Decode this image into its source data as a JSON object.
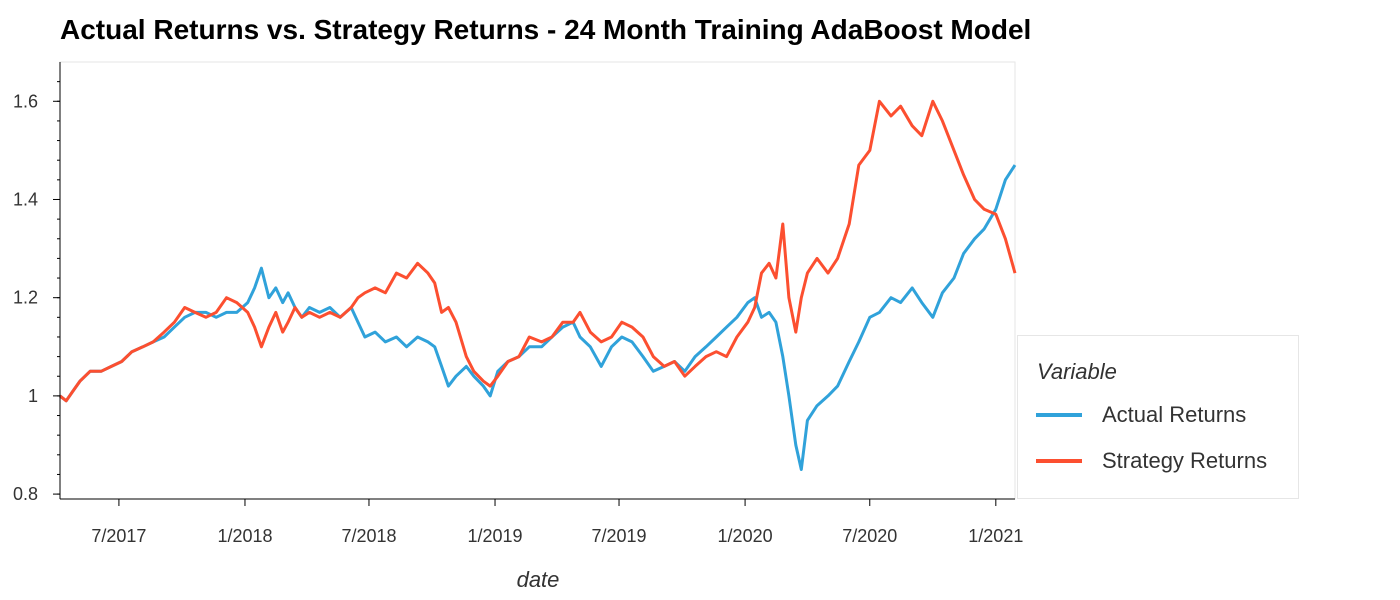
{
  "chart_data": {
    "type": "line",
    "title": "Actual Returns vs. Strategy Returns - 24 Month Training AdaBoost Model",
    "xlabel": "date",
    "ylabel": "",
    "x_range": [
      "2017-04-06",
      "2021-01-29"
    ],
    "ylim": [
      0.79,
      1.68
    ],
    "grid": false,
    "legend_position": "right",
    "legend_title": "Variable",
    "x_ticks": [
      {
        "date": "2017-07-01",
        "label": "7/2017"
      },
      {
        "date": "2018-01-01",
        "label": "1/2018"
      },
      {
        "date": "2018-07-01",
        "label": "7/2018"
      },
      {
        "date": "2019-01-01",
        "label": "1/2019"
      },
      {
        "date": "2019-07-01",
        "label": "7/2019"
      },
      {
        "date": "2020-01-01",
        "label": "1/2020"
      },
      {
        "date": "2020-07-01",
        "label": "7/2020"
      },
      {
        "date": "2021-01-01",
        "label": "1/2021"
      }
    ],
    "y_ticks": [
      {
        "value": 0.8,
        "label": "0.8"
      },
      {
        "value": 1.0,
        "label": "1"
      },
      {
        "value": 1.2,
        "label": "1.2"
      },
      {
        "value": 1.4,
        "label": "1.4"
      },
      {
        "value": 1.6,
        "label": "1.6"
      }
    ],
    "series": [
      {
        "name": "Actual Returns",
        "color": "#30a2da",
        "points": [
          [
            "2017-04-06",
            1.0
          ],
          [
            "2017-04-15",
            0.99
          ],
          [
            "2017-04-25",
            1.01
          ],
          [
            "2017-05-05",
            1.03
          ],
          [
            "2017-05-20",
            1.05
          ],
          [
            "2017-06-05",
            1.05
          ],
          [
            "2017-06-20",
            1.06
          ],
          [
            "2017-07-05",
            1.07
          ],
          [
            "2017-07-20",
            1.09
          ],
          [
            "2017-08-05",
            1.1
          ],
          [
            "2017-08-20",
            1.11
          ],
          [
            "2017-09-05",
            1.12
          ],
          [
            "2017-09-20",
            1.14
          ],
          [
            "2017-10-05",
            1.16
          ],
          [
            "2017-10-20",
            1.17
          ],
          [
            "2017-11-05",
            1.17
          ],
          [
            "2017-11-20",
            1.16
          ],
          [
            "2017-12-05",
            1.17
          ],
          [
            "2017-12-20",
            1.17
          ],
          [
            "2018-01-05",
            1.19
          ],
          [
            "2018-01-15",
            1.22
          ],
          [
            "2018-01-25",
            1.26
          ],
          [
            "2018-02-05",
            1.2
          ],
          [
            "2018-02-15",
            1.22
          ],
          [
            "2018-02-25",
            1.19
          ],
          [
            "2018-03-05",
            1.21
          ],
          [
            "2018-03-15",
            1.18
          ],
          [
            "2018-03-25",
            1.16
          ],
          [
            "2018-04-05",
            1.18
          ],
          [
            "2018-04-20",
            1.17
          ],
          [
            "2018-05-05",
            1.18
          ],
          [
            "2018-05-20",
            1.16
          ],
          [
            "2018-06-05",
            1.18
          ],
          [
            "2018-06-15",
            1.15
          ],
          [
            "2018-06-25",
            1.12
          ],
          [
            "2018-07-10",
            1.13
          ],
          [
            "2018-07-25",
            1.11
          ],
          [
            "2018-08-10",
            1.12
          ],
          [
            "2018-08-25",
            1.1
          ],
          [
            "2018-09-10",
            1.12
          ],
          [
            "2018-09-25",
            1.11
          ],
          [
            "2018-10-05",
            1.1
          ],
          [
            "2018-10-15",
            1.06
          ],
          [
            "2018-10-25",
            1.02
          ],
          [
            "2018-11-05",
            1.04
          ],
          [
            "2018-11-20",
            1.06
          ],
          [
            "2018-12-01",
            1.04
          ],
          [
            "2018-12-15",
            1.02
          ],
          [
            "2018-12-25",
            1.0
          ],
          [
            "2019-01-05",
            1.05
          ],
          [
            "2019-01-20",
            1.07
          ],
          [
            "2019-02-05",
            1.08
          ],
          [
            "2019-02-20",
            1.1
          ],
          [
            "2019-03-10",
            1.1
          ],
          [
            "2019-03-25",
            1.12
          ],
          [
            "2019-04-10",
            1.14
          ],
          [
            "2019-04-25",
            1.15
          ],
          [
            "2019-05-05",
            1.12
          ],
          [
            "2019-05-20",
            1.1
          ],
          [
            "2019-06-05",
            1.06
          ],
          [
            "2019-06-20",
            1.1
          ],
          [
            "2019-07-05",
            1.12
          ],
          [
            "2019-07-20",
            1.11
          ],
          [
            "2019-08-05",
            1.08
          ],
          [
            "2019-08-20",
            1.05
          ],
          [
            "2019-09-05",
            1.06
          ],
          [
            "2019-09-20",
            1.07
          ],
          [
            "2019-10-05",
            1.05
          ],
          [
            "2019-10-20",
            1.08
          ],
          [
            "2019-11-05",
            1.1
          ],
          [
            "2019-11-20",
            1.12
          ],
          [
            "2019-12-05",
            1.14
          ],
          [
            "2019-12-20",
            1.16
          ],
          [
            "2020-01-05",
            1.19
          ],
          [
            "2020-01-15",
            1.2
          ],
          [
            "2020-01-25",
            1.16
          ],
          [
            "2020-02-05",
            1.17
          ],
          [
            "2020-02-15",
            1.15
          ],
          [
            "2020-02-25",
            1.08
          ],
          [
            "2020-03-05",
            1.0
          ],
          [
            "2020-03-15",
            0.9
          ],
          [
            "2020-03-23",
            0.85
          ],
          [
            "2020-04-01",
            0.95
          ],
          [
            "2020-04-15",
            0.98
          ],
          [
            "2020-05-01",
            1.0
          ],
          [
            "2020-05-15",
            1.02
          ],
          [
            "2020-06-01",
            1.07
          ],
          [
            "2020-06-15",
            1.11
          ],
          [
            "2020-07-01",
            1.16
          ],
          [
            "2020-07-15",
            1.17
          ],
          [
            "2020-08-01",
            1.2
          ],
          [
            "2020-08-15",
            1.19
          ],
          [
            "2020-09-01",
            1.22
          ],
          [
            "2020-09-15",
            1.19
          ],
          [
            "2020-10-01",
            1.16
          ],
          [
            "2020-10-15",
            1.21
          ],
          [
            "2020-11-01",
            1.24
          ],
          [
            "2020-11-15",
            1.29
          ],
          [
            "2020-12-01",
            1.32
          ],
          [
            "2020-12-15",
            1.34
          ],
          [
            "2021-01-01",
            1.38
          ],
          [
            "2021-01-15",
            1.44
          ],
          [
            "2021-01-29",
            1.47
          ]
        ]
      },
      {
        "name": "Strategy Returns",
        "color": "#fc4f30",
        "points": [
          [
            "2017-04-06",
            1.0
          ],
          [
            "2017-04-15",
            0.99
          ],
          [
            "2017-04-25",
            1.01
          ],
          [
            "2017-05-05",
            1.03
          ],
          [
            "2017-05-20",
            1.05
          ],
          [
            "2017-06-05",
            1.05
          ],
          [
            "2017-06-20",
            1.06
          ],
          [
            "2017-07-05",
            1.07
          ],
          [
            "2017-07-20",
            1.09
          ],
          [
            "2017-08-05",
            1.1
          ],
          [
            "2017-08-20",
            1.11
          ],
          [
            "2017-09-05",
            1.13
          ],
          [
            "2017-09-20",
            1.15
          ],
          [
            "2017-10-05",
            1.18
          ],
          [
            "2017-10-20",
            1.17
          ],
          [
            "2017-11-05",
            1.16
          ],
          [
            "2017-11-20",
            1.17
          ],
          [
            "2017-12-05",
            1.2
          ],
          [
            "2017-12-20",
            1.19
          ],
          [
            "2018-01-05",
            1.17
          ],
          [
            "2018-01-15",
            1.14
          ],
          [
            "2018-01-25",
            1.1
          ],
          [
            "2018-02-05",
            1.14
          ],
          [
            "2018-02-15",
            1.17
          ],
          [
            "2018-02-25",
            1.13
          ],
          [
            "2018-03-05",
            1.15
          ],
          [
            "2018-03-15",
            1.18
          ],
          [
            "2018-03-25",
            1.16
          ],
          [
            "2018-04-05",
            1.17
          ],
          [
            "2018-04-20",
            1.16
          ],
          [
            "2018-05-05",
            1.17
          ],
          [
            "2018-05-20",
            1.16
          ],
          [
            "2018-06-05",
            1.18
          ],
          [
            "2018-06-15",
            1.2
          ],
          [
            "2018-06-25",
            1.21
          ],
          [
            "2018-07-10",
            1.22
          ],
          [
            "2018-07-25",
            1.21
          ],
          [
            "2018-08-10",
            1.25
          ],
          [
            "2018-08-25",
            1.24
          ],
          [
            "2018-09-10",
            1.27
          ],
          [
            "2018-09-25",
            1.25
          ],
          [
            "2018-10-05",
            1.23
          ],
          [
            "2018-10-15",
            1.17
          ],
          [
            "2018-10-25",
            1.18
          ],
          [
            "2018-11-05",
            1.15
          ],
          [
            "2018-11-20",
            1.08
          ],
          [
            "2018-12-01",
            1.05
          ],
          [
            "2018-12-15",
            1.03
          ],
          [
            "2018-12-25",
            1.02
          ],
          [
            "2019-01-05",
            1.04
          ],
          [
            "2019-01-20",
            1.07
          ],
          [
            "2019-02-05",
            1.08
          ],
          [
            "2019-02-20",
            1.12
          ],
          [
            "2019-03-10",
            1.11
          ],
          [
            "2019-03-25",
            1.12
          ],
          [
            "2019-04-10",
            1.15
          ],
          [
            "2019-04-25",
            1.15
          ],
          [
            "2019-05-05",
            1.17
          ],
          [
            "2019-05-20",
            1.13
          ],
          [
            "2019-06-05",
            1.11
          ],
          [
            "2019-06-20",
            1.12
          ],
          [
            "2019-07-05",
            1.15
          ],
          [
            "2019-07-20",
            1.14
          ],
          [
            "2019-08-05",
            1.12
          ],
          [
            "2019-08-20",
            1.08
          ],
          [
            "2019-09-05",
            1.06
          ],
          [
            "2019-09-20",
            1.07
          ],
          [
            "2019-10-05",
            1.04
          ],
          [
            "2019-10-20",
            1.06
          ],
          [
            "2019-11-05",
            1.08
          ],
          [
            "2019-11-20",
            1.09
          ],
          [
            "2019-12-05",
            1.08
          ],
          [
            "2019-12-20",
            1.12
          ],
          [
            "2020-01-05",
            1.15
          ],
          [
            "2020-01-15",
            1.18
          ],
          [
            "2020-01-25",
            1.25
          ],
          [
            "2020-02-05",
            1.27
          ],
          [
            "2020-02-15",
            1.24
          ],
          [
            "2020-02-25",
            1.35
          ],
          [
            "2020-03-05",
            1.2
          ],
          [
            "2020-03-15",
            1.13
          ],
          [
            "2020-03-23",
            1.2
          ],
          [
            "2020-04-01",
            1.25
          ],
          [
            "2020-04-15",
            1.28
          ],
          [
            "2020-05-01",
            1.25
          ],
          [
            "2020-05-15",
            1.28
          ],
          [
            "2020-06-01",
            1.35
          ],
          [
            "2020-06-15",
            1.47
          ],
          [
            "2020-07-01",
            1.5
          ],
          [
            "2020-07-15",
            1.6
          ],
          [
            "2020-08-01",
            1.57
          ],
          [
            "2020-08-15",
            1.59
          ],
          [
            "2020-09-01",
            1.55
          ],
          [
            "2020-09-15",
            1.53
          ],
          [
            "2020-10-01",
            1.6
          ],
          [
            "2020-10-15",
            1.56
          ],
          [
            "2020-11-01",
            1.5
          ],
          [
            "2020-11-15",
            1.45
          ],
          [
            "2020-12-01",
            1.4
          ],
          [
            "2020-12-15",
            1.38
          ],
          [
            "2021-01-01",
            1.37
          ],
          [
            "2021-01-15",
            1.32
          ],
          [
            "2021-01-29",
            1.25
          ]
        ]
      }
    ]
  }
}
